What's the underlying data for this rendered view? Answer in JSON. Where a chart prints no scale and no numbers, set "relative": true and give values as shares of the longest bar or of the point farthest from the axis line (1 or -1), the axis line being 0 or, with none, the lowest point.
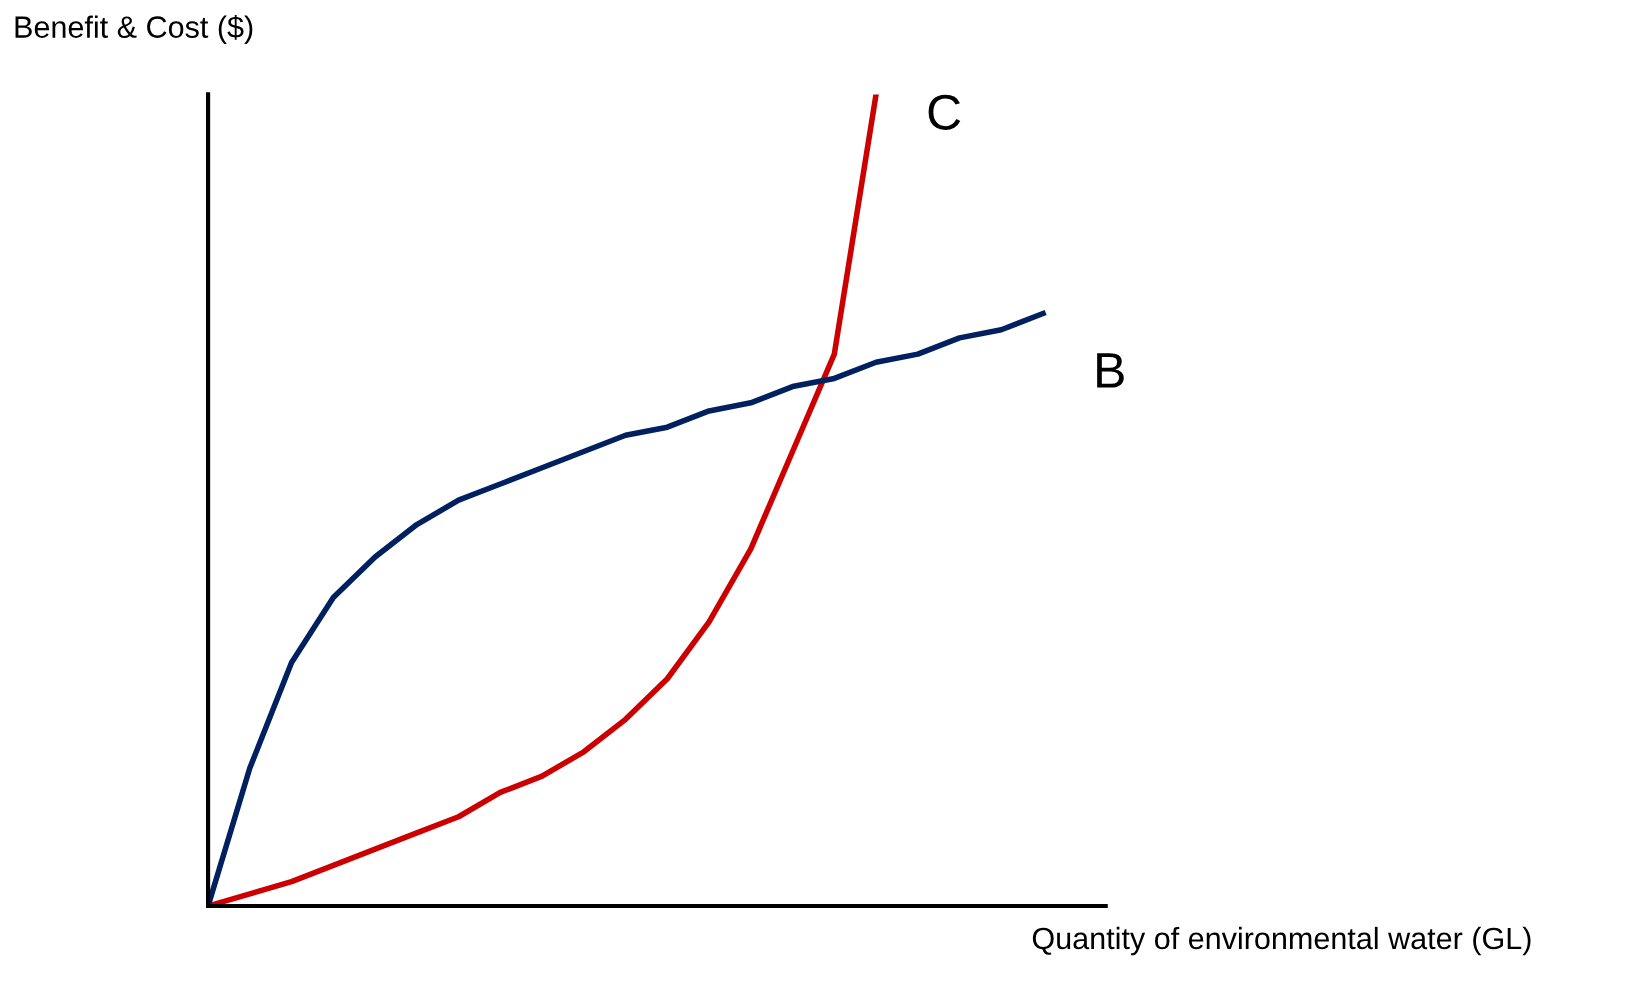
{
  "chart_data": {
    "type": "line",
    "relative": true,
    "ylabel": "Benefit & Cost ($)",
    "xlabel": "Quantity of environmental water (GL)",
    "categories": [
      null,
      null,
      null,
      null,
      null,
      null,
      null,
      null,
      null,
      null,
      null,
      null,
      null,
      null,
      null,
      null,
      null,
      null,
      null,
      null,
      null
    ],
    "series": [
      {
        "name": "C",
        "color": "#cc0000",
        "values": [
          0,
          0.015,
          0.03,
          0.05,
          0.07,
          0.09,
          0.11,
          0.14,
          0.16,
          0.19,
          0.23,
          0.28,
          0.35,
          0.44,
          0.56,
          0.68,
          1.0,
          null,
          null,
          null,
          null
        ]
      },
      {
        "name": "B",
        "color": "#002060",
        "values": [
          0,
          0.17,
          0.3,
          0.38,
          0.43,
          0.47,
          0.5,
          0.52,
          0.54,
          0.56,
          0.58,
          0.59,
          0.61,
          0.62,
          0.64,
          0.65,
          0.67,
          0.68,
          0.7,
          0.71,
          0.73
        ]
      }
    ],
    "legend": false,
    "marker": "none",
    "line_style": "solid"
  }
}
